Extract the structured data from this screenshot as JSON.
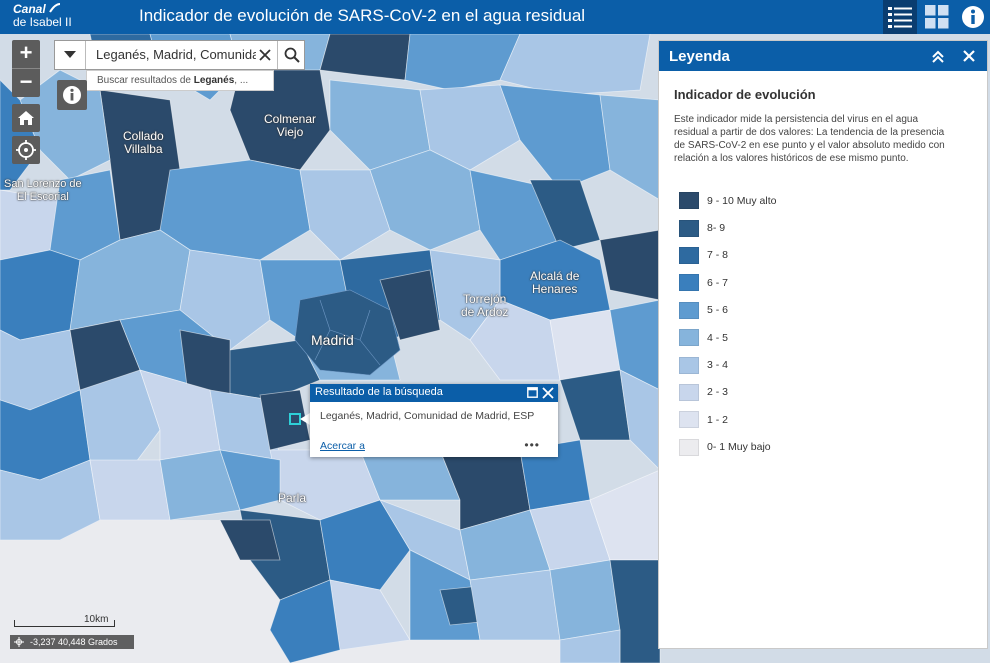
{
  "header": {
    "logo_line1": "Canal",
    "logo_line2": "de Isabel II",
    "title": "Indicador de evolución de SARS-CoV-2 en el agua residual",
    "icons": [
      "legend-list-icon",
      "basemap-grid-icon",
      "about-info-icon"
    ]
  },
  "map": {
    "zoom_in": "+",
    "zoom_out": "−",
    "cities": {
      "collado": "Collado\nVillalba",
      "colmenar": "Colmenar\nViejo",
      "sanlorenzo": "San Lorenzo de\nEl Escorial",
      "alcala": "Alcalá de\nHenares",
      "torrejon": "Torrejón\nde Ardoz",
      "madrid": "Madrid",
      "parla": "Parla"
    },
    "scale_label": "10km",
    "coordinates": "-3,237 40,448 Grados"
  },
  "search": {
    "value": "Leganés, Madrid, Comunidad de Madrid, ESP",
    "suggest_prefix": "Buscar resultados de ",
    "suggest_term": "Leganés",
    "suggest_suffix": ", ..."
  },
  "popup": {
    "title": "Resultado de la búsqueda",
    "body": "Leganés, Madrid, Comunidad de Madrid, ESP",
    "link": "Acercar a",
    "more": "•••"
  },
  "legend": {
    "title": "Leyenda",
    "heading": "Indicador de evolución",
    "description": "Este indicador mide la persistencia del virus en el agua residual a partir de dos valores: La tendencia de la presencia de SARS-CoV-2 en ese punto y el valor absoluto medido con relación a los valores históricos de ese mismo punto.",
    "items": [
      {
        "label": "9 - 10 Muy alto",
        "color": "#2b4a6b"
      },
      {
        "label": "8- 9",
        "color": "#2c5b85"
      },
      {
        "label": "7 - 8",
        "color": "#2e6aa0"
      },
      {
        "label": "6 - 7",
        "color": "#3a7fbd"
      },
      {
        "label": "5 - 6",
        "color": "#5e9bd0"
      },
      {
        "label": "4 - 5",
        "color": "#86b4dc"
      },
      {
        "label": "3 - 4",
        "color": "#a9c6e6"
      },
      {
        "label": "2 - 3",
        "color": "#c8d6ec"
      },
      {
        "label": "1 - 2",
        "color": "#dde3f0"
      },
      {
        "label": "0- 1 Muy bajo",
        "color": "#ececef"
      }
    ]
  }
}
